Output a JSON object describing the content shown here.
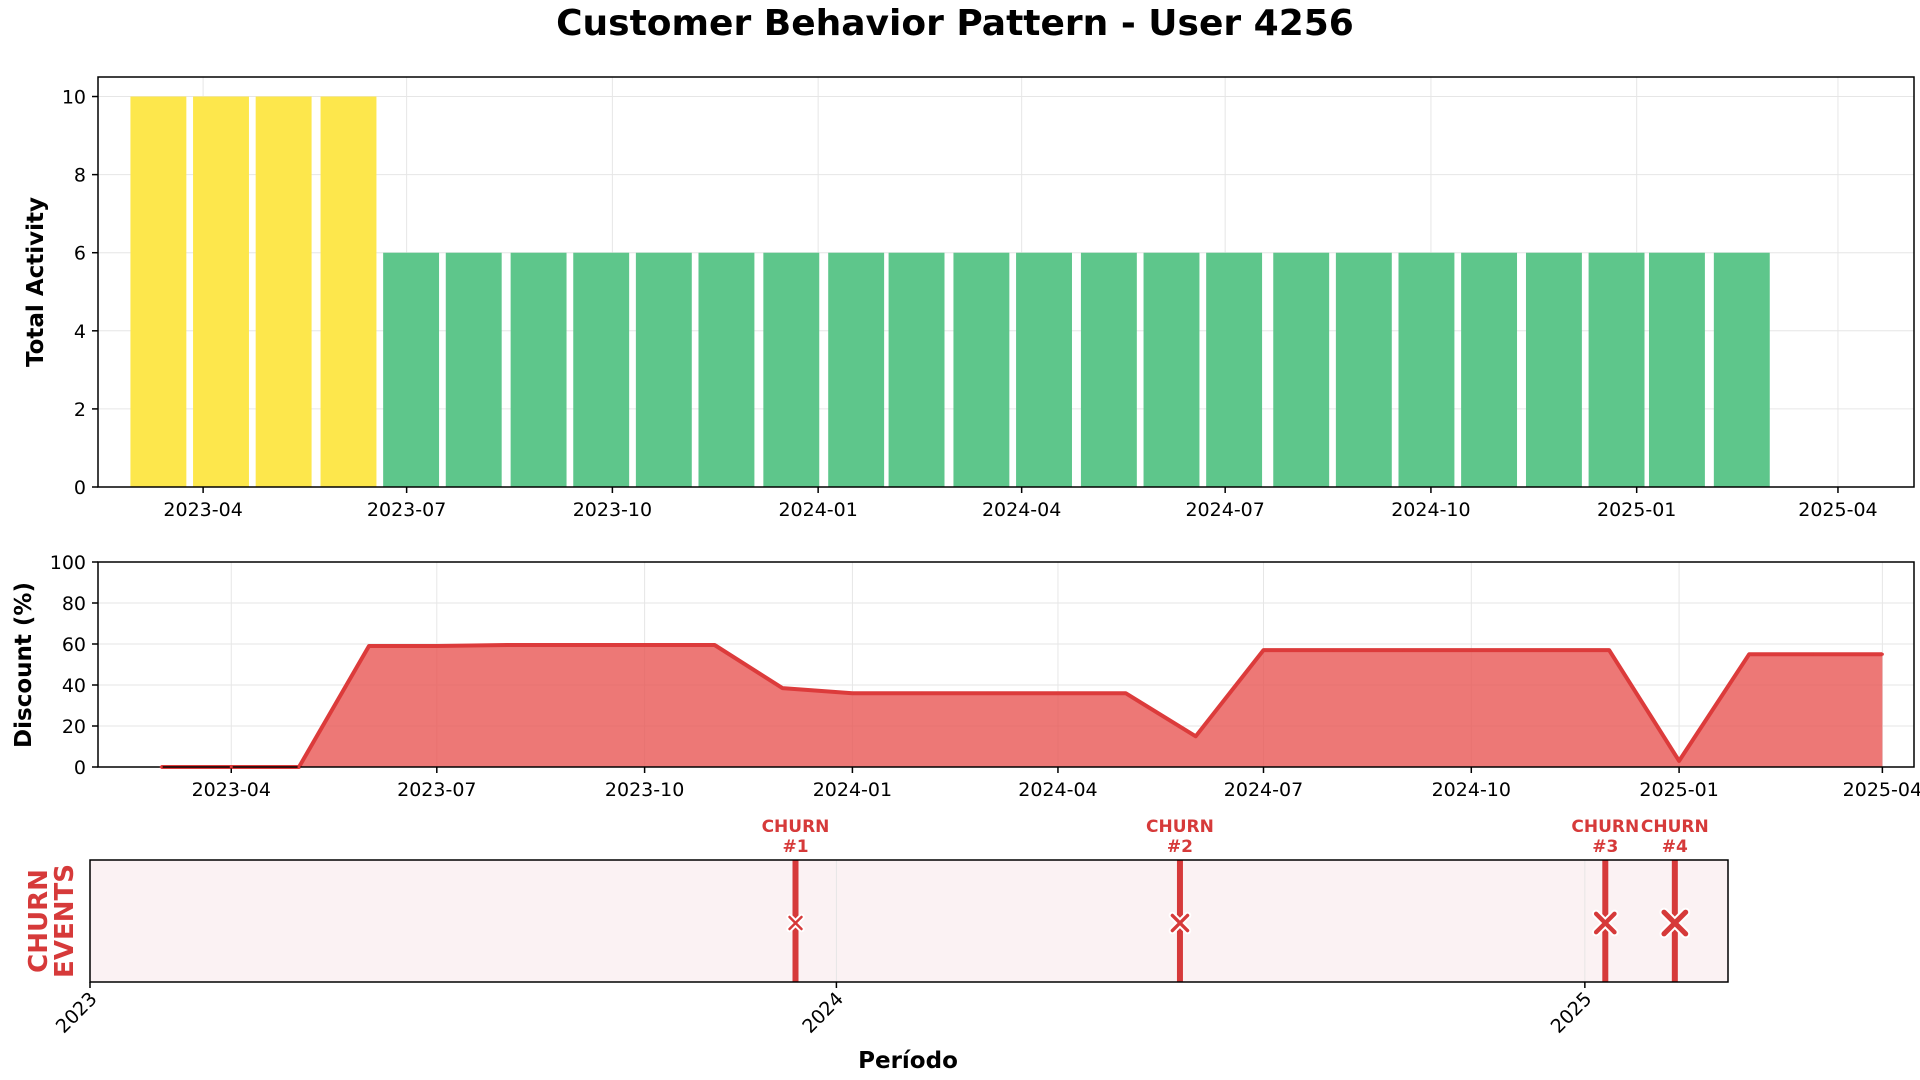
{
  "figure": {
    "title": "Customer Behavior Pattern - User 4256"
  },
  "chart_data": [
    {
      "type": "bar",
      "ylabel": "Total Activity",
      "ylim": [
        0,
        10.5
      ],
      "yticks": [
        0,
        2,
        4,
        6,
        8,
        10
      ],
      "xlim": [
        "2023-02-13",
        "2025-05-05"
      ],
      "xticks": [
        "2023-04",
        "2023-07",
        "2023-10",
        "2024-01",
        "2024-04",
        "2024-07",
        "2024-10",
        "2025-01",
        "2025-04"
      ],
      "grid": true,
      "colors": {
        "high": "#FDE74C",
        "normal": "#5EC68B"
      },
      "bars": [
        {
          "date": "2023-03-12",
          "value": 10,
          "group": "high"
        },
        {
          "date": "2023-04-09",
          "value": 10,
          "group": "high"
        },
        {
          "date": "2023-05-07",
          "value": 10,
          "group": "high"
        },
        {
          "date": "2023-06-05",
          "value": 10,
          "group": "high"
        },
        {
          "date": "2023-07-03",
          "value": 6,
          "group": "normal"
        },
        {
          "date": "2023-07-31",
          "value": 6,
          "group": "normal"
        },
        {
          "date": "2023-08-29",
          "value": 6,
          "group": "normal"
        },
        {
          "date": "2023-09-26",
          "value": 6,
          "group": "normal"
        },
        {
          "date": "2023-10-24",
          "value": 6,
          "group": "normal"
        },
        {
          "date": "2023-11-21",
          "value": 6,
          "group": "normal"
        },
        {
          "date": "2023-12-20",
          "value": 6,
          "group": "normal"
        },
        {
          "date": "2024-01-18",
          "value": 6,
          "group": "normal"
        },
        {
          "date": "2024-02-14",
          "value": 6,
          "group": "normal"
        },
        {
          "date": "2024-03-14",
          "value": 6,
          "group": "normal"
        },
        {
          "date": "2024-04-11",
          "value": 6,
          "group": "normal"
        },
        {
          "date": "2024-05-10",
          "value": 6,
          "group": "normal"
        },
        {
          "date": "2024-06-07",
          "value": 6,
          "group": "normal"
        },
        {
          "date": "2024-07-05",
          "value": 6,
          "group": "normal"
        },
        {
          "date": "2024-08-04",
          "value": 6,
          "group": "normal"
        },
        {
          "date": "2024-09-01",
          "value": 6,
          "group": "normal"
        },
        {
          "date": "2024-09-29",
          "value": 6,
          "group": "normal"
        },
        {
          "date": "2024-10-27",
          "value": 6,
          "group": "normal"
        },
        {
          "date": "2024-11-25",
          "value": 6,
          "group": "normal"
        },
        {
          "date": "2024-12-23",
          "value": 6,
          "group": "normal"
        },
        {
          "date": "2025-01-19",
          "value": 6,
          "group": "normal"
        },
        {
          "date": "2025-02-17",
          "value": 6,
          "group": "normal"
        }
      ]
    },
    {
      "type": "area",
      "ylabel": "Discount (%)",
      "ylim": [
        0,
        100
      ],
      "yticks": [
        0,
        20,
        40,
        60,
        80,
        100
      ],
      "xlim": [
        "2023-02-01",
        "2025-04-15"
      ],
      "xticks": [
        "2023-04",
        "2023-07",
        "2023-10",
        "2024-01",
        "2024-04",
        "2024-07",
        "2024-10",
        "2025-01",
        "2025-04"
      ],
      "grid": true,
      "color": "#E8524F",
      "points": [
        {
          "date": "2023-03-01",
          "value": 0
        },
        {
          "date": "2023-04-01",
          "value": 0
        },
        {
          "date": "2023-05-01",
          "value": 0
        },
        {
          "date": "2023-06-01",
          "value": 59
        },
        {
          "date": "2023-07-01",
          "value": 59
        },
        {
          "date": "2023-08-01",
          "value": 59.5
        },
        {
          "date": "2023-09-01",
          "value": 59.5
        },
        {
          "date": "2023-10-01",
          "value": 59.5
        },
        {
          "date": "2023-11-01",
          "value": 59.5
        },
        {
          "date": "2023-12-01",
          "value": 38.5
        },
        {
          "date": "2024-01-01",
          "value": 36
        },
        {
          "date": "2024-02-01",
          "value": 36
        },
        {
          "date": "2024-03-01",
          "value": 36
        },
        {
          "date": "2024-04-01",
          "value": 36
        },
        {
          "date": "2024-05-01",
          "value": 36
        },
        {
          "date": "2024-06-01",
          "value": 15
        },
        {
          "date": "2024-07-01",
          "value": 57
        },
        {
          "date": "2024-08-01",
          "value": 57
        },
        {
          "date": "2024-09-01",
          "value": 57
        },
        {
          "date": "2024-10-01",
          "value": 57
        },
        {
          "date": "2024-11-01",
          "value": 57
        },
        {
          "date": "2024-12-01",
          "value": 57
        },
        {
          "date": "2025-01-01",
          "value": 3
        },
        {
          "date": "2025-02-01",
          "value": 55
        },
        {
          "date": "2025-03-01",
          "value": 55
        },
        {
          "date": "2025-04-01",
          "value": 55
        }
      ]
    },
    {
      "type": "scatter",
      "ylabel": "CHURN\nEVENTS",
      "xlabel": "Período",
      "xlim": [
        "2023-01-01",
        "2025-03-12"
      ],
      "xticks": [
        "2023",
        "2024",
        "2025"
      ],
      "color": "#D63A3A",
      "background": "#FBF2F3",
      "events": [
        {
          "date": "2023-12-12",
          "label": "CHURN\n#1"
        },
        {
          "date": "2024-06-17",
          "label": "CHURN\n#2"
        },
        {
          "date": "2025-01-11",
          "label": "CHURN\n#3"
        },
        {
          "date": "2025-02-14",
          "label": "CHURN\n#4"
        }
      ]
    }
  ]
}
